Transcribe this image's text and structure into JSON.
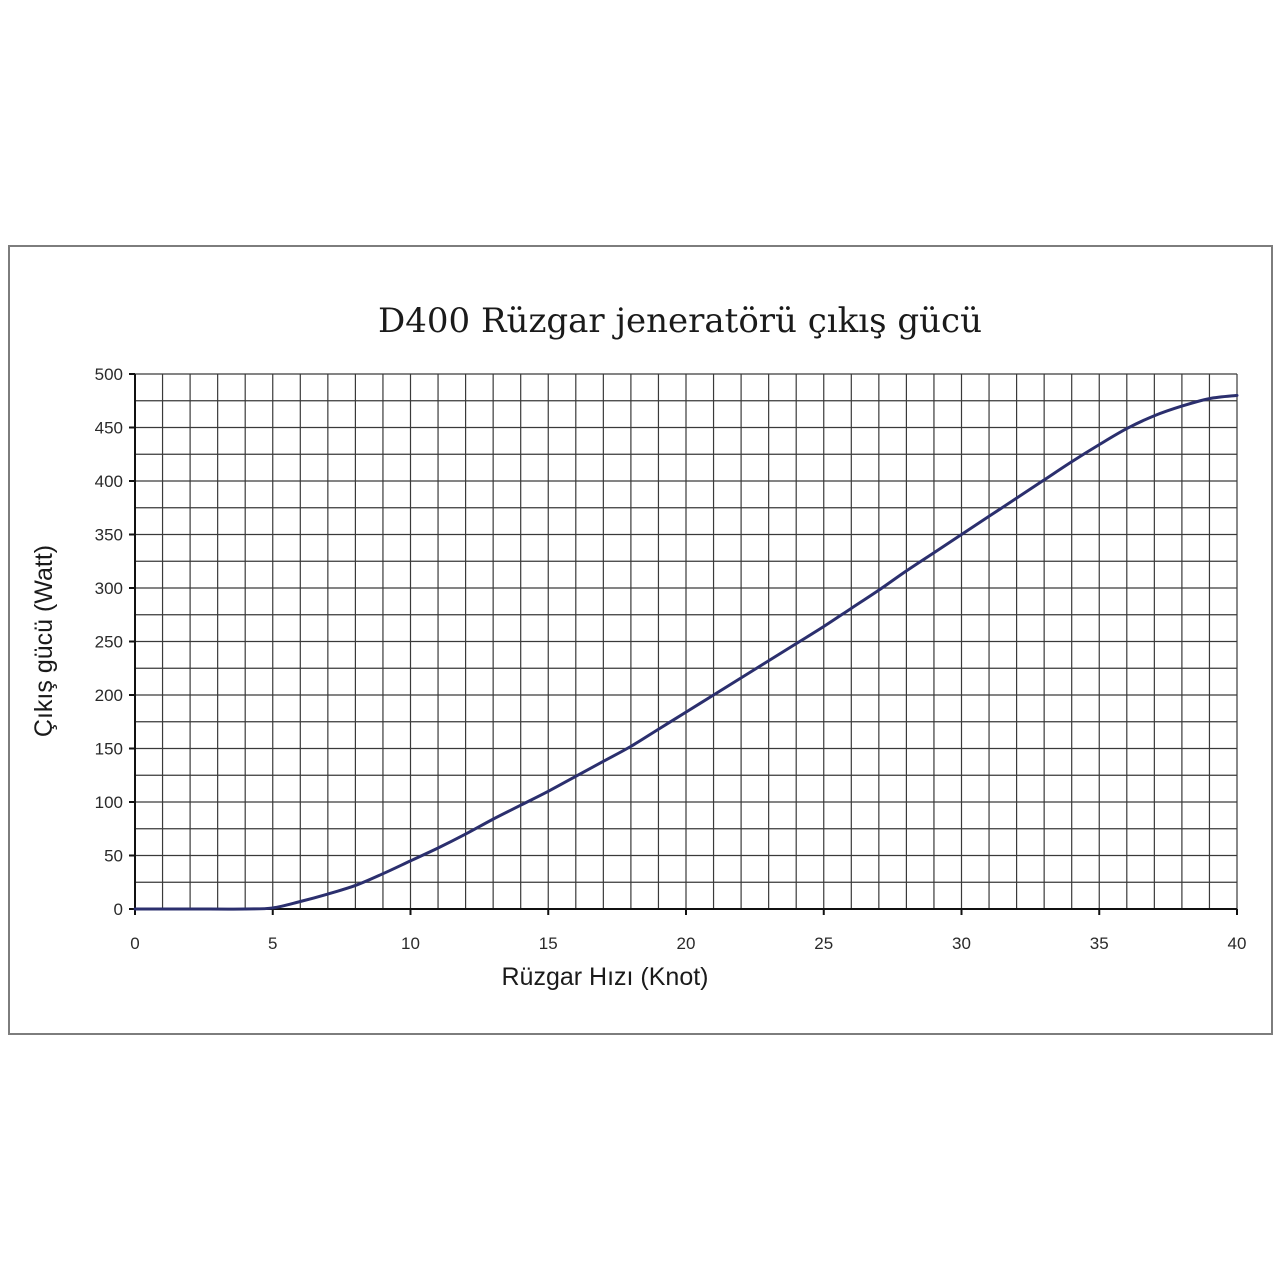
{
  "chart_data": {
    "type": "line",
    "title": "D400 Rüzgar jeneratörü çıkış gücü",
    "xlabel": "Rüzgar Hızı (Knot)",
    "ylabel": "Çıkış gücü (Watt)",
    "xlim": [
      0,
      40
    ],
    "ylim": [
      0,
      500
    ],
    "xticks": [
      "0",
      "5",
      "10",
      "15",
      "20",
      "25",
      "30",
      "35",
      "40"
    ],
    "yticks": [
      "0",
      "50",
      "100",
      "150",
      "200",
      "250",
      "300",
      "350",
      "400",
      "450",
      "500"
    ],
    "grid": true,
    "grid_minor_x_step": 1,
    "grid_minor_y_step": 25,
    "series": [
      {
        "color": "#2b2f6e",
        "x": [
          0,
          2,
          4,
          5,
          6,
          7,
          8,
          9,
          10,
          11,
          12,
          13,
          14,
          15,
          16,
          17,
          18,
          19,
          20,
          21,
          22,
          23,
          24,
          25,
          26,
          27,
          28,
          29,
          30,
          31,
          32,
          33,
          34,
          35,
          36,
          37,
          38,
          39,
          40
        ],
        "y": [
          0,
          0,
          0,
          1,
          7,
          14,
          22,
          33,
          45,
          57,
          70,
          84,
          97,
          110,
          124,
          138,
          152,
          168,
          184,
          200,
          216,
          232,
          248,
          264,
          281,
          298,
          316,
          333,
          350,
          367,
          384,
          401,
          418,
          434,
          449,
          461,
          470,
          477,
          480
        ]
      }
    ]
  }
}
